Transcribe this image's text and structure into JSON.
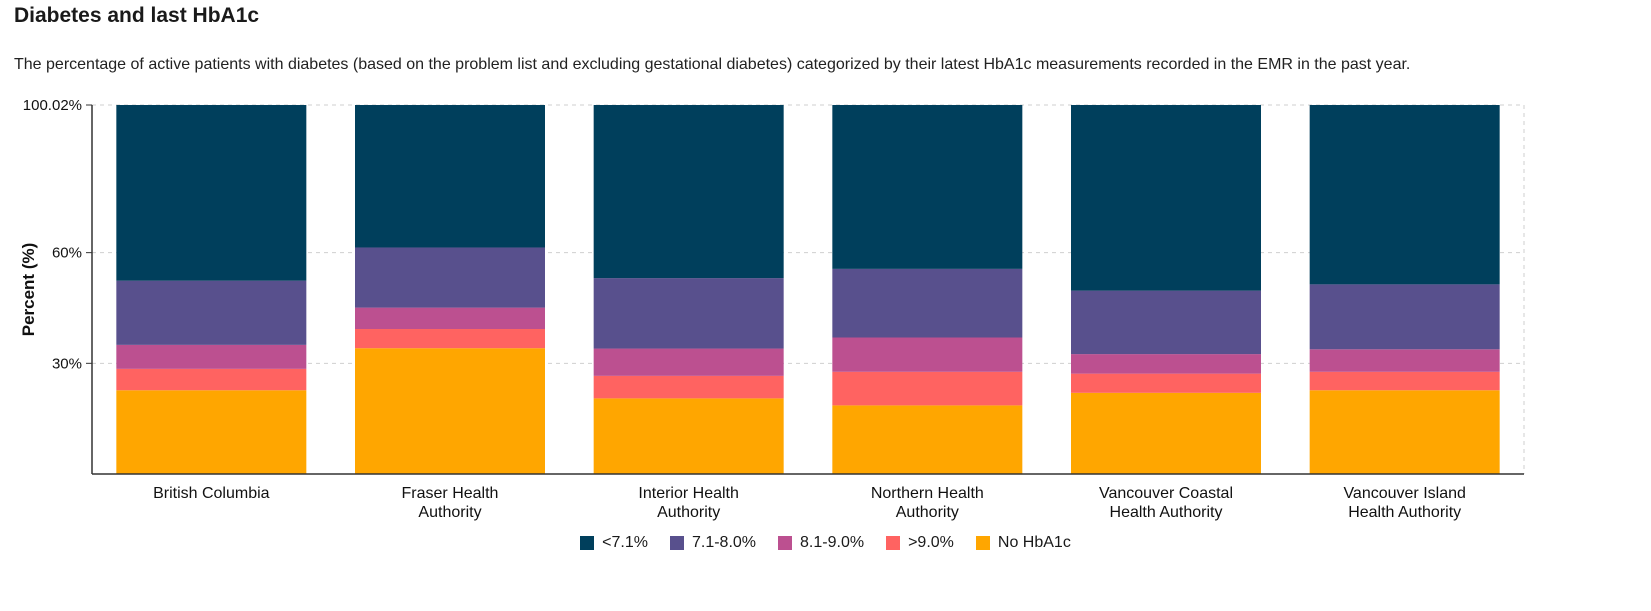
{
  "title": "Diabetes and last HbA1c",
  "subtitle": "The percentage of active patients with diabetes (based on the problem list and excluding gestational diabetes) categorized by their latest HbA1c measurements recorded in the EMR in the past year.",
  "colors": {
    "lt71": "#003f5c",
    "r71_80": "#58508d",
    "r81_90": "#bc5090",
    "gt90": "#ff6361",
    "none": "#ffa600"
  },
  "chart_data": {
    "type": "bar",
    "stacked": true,
    "title": "Diabetes and last HbA1c",
    "xlabel": "",
    "ylabel": "Percent (%)",
    "ylim": [
      0,
      100.02
    ],
    "yticks": [
      {
        "value": 30,
        "label": "30%"
      },
      {
        "value": 60,
        "label": "60%"
      },
      {
        "value": 100.02,
        "label": "100.02%"
      }
    ],
    "grid": true,
    "legend_position": "bottom",
    "categories": [
      [
        "British Columbia"
      ],
      [
        "Fraser Health",
        "Authority"
      ],
      [
        "Interior Health",
        "Authority"
      ],
      [
        "Northern Health",
        "Authority"
      ],
      [
        "Vancouver Coastal",
        "Health Authority"
      ],
      [
        "Vancouver Island",
        "Health Authority"
      ]
    ],
    "series": [
      {
        "name": "No HbA1c",
        "color_key": "none",
        "values": [
          22.7,
          34.1,
          20.5,
          18.6,
          22.0,
          22.7
        ]
      },
      {
        "name": ">9.0%",
        "color_key": "gt90",
        "values": [
          5.8,
          5.2,
          6.1,
          9.1,
          5.2,
          5.0
        ]
      },
      {
        "name": "8.1-9.0%",
        "color_key": "r81_90",
        "values": [
          6.5,
          5.8,
          7.4,
          9.3,
          5.3,
          6.1
        ]
      },
      {
        "name": "7.1-8.0%",
        "color_key": "r71_80",
        "values": [
          17.4,
          16.3,
          19.1,
          18.6,
          17.2,
          17.6
        ]
      },
      {
        "name": "<7.1%",
        "color_key": "lt71",
        "values": [
          47.62,
          38.62,
          46.92,
          44.42,
          50.32,
          48.62
        ]
      }
    ],
    "legend_order": [
      "<7.1%",
      "7.1-8.0%",
      "8.1-9.0%",
      ">9.0%",
      "No HbA1c"
    ]
  }
}
